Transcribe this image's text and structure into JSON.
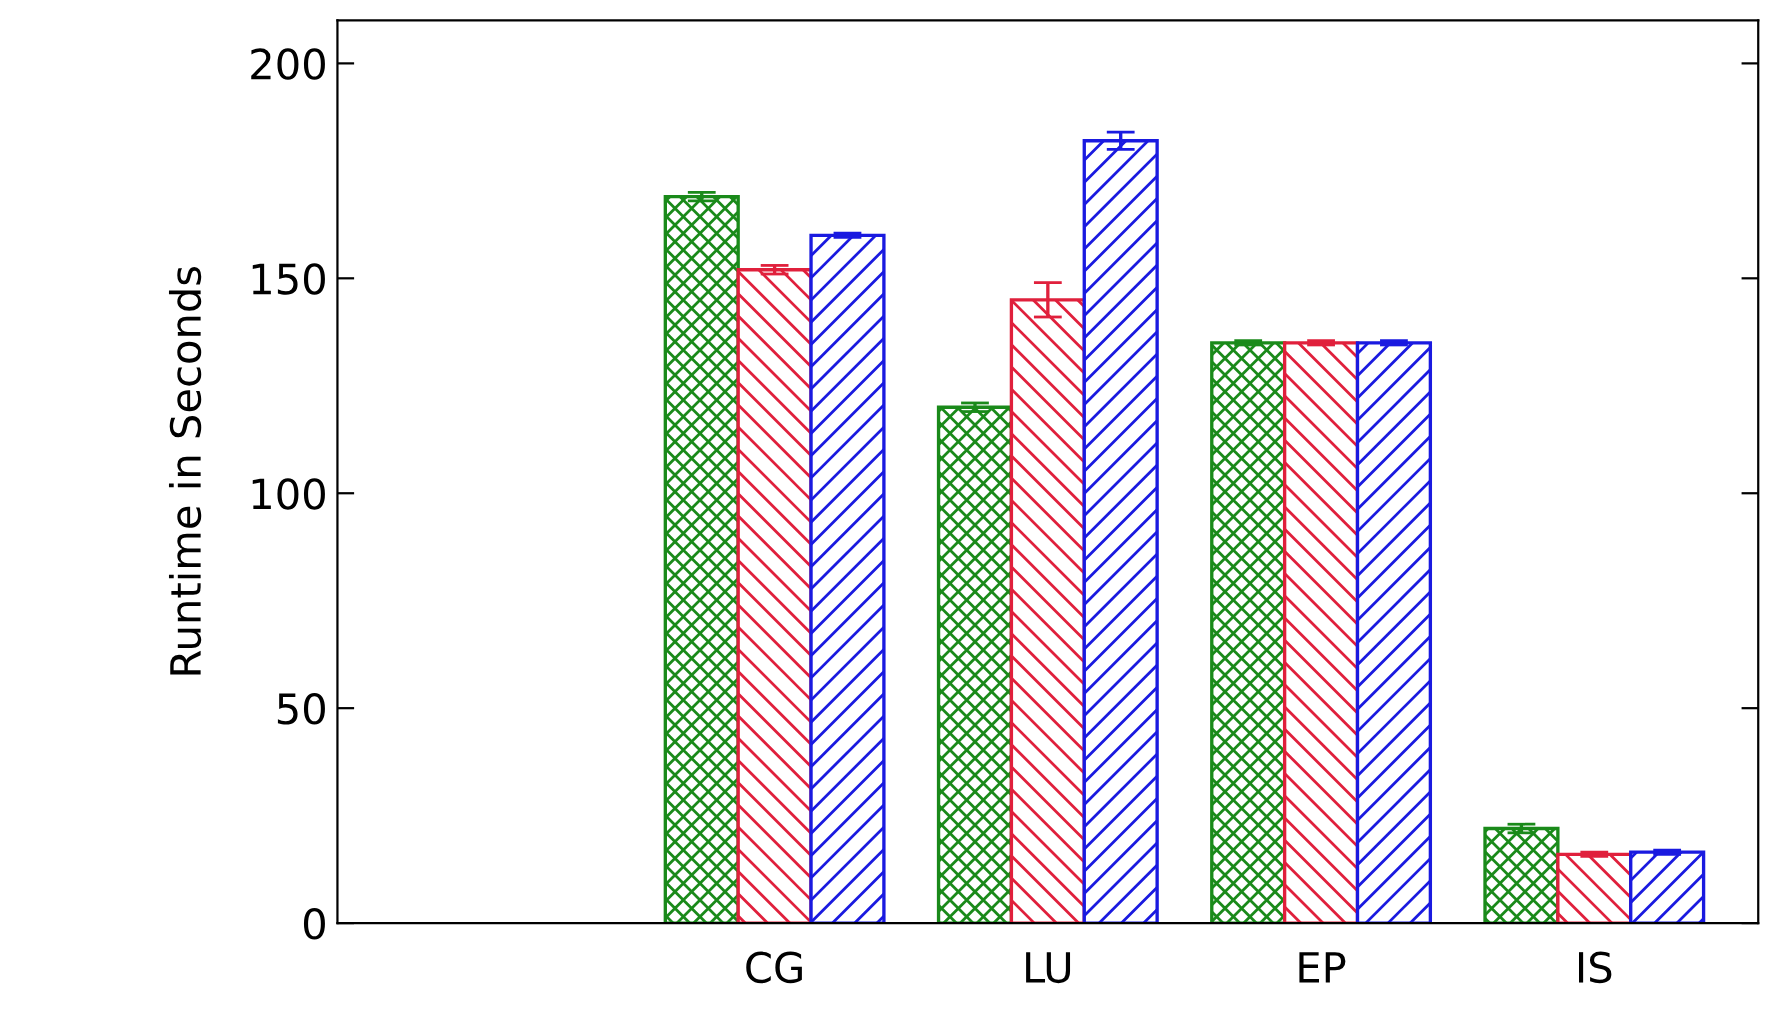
{
  "chart_data": {
    "type": "bar",
    "ylabel": "Runtime in Seconds",
    "categories": [
      "CG",
      "LU",
      "EP",
      "IS"
    ],
    "series": [
      {
        "color": "#1a8a1a",
        "values": [
          169,
          120,
          135,
          22
        ],
        "errors": [
          1,
          1,
          0.5,
          1
        ]
      },
      {
        "color": "#e0203c",
        "values": [
          152,
          145,
          135,
          16
        ],
        "errors": [
          1,
          4,
          0.5,
          0.5
        ]
      },
      {
        "color": "#1a1ae0",
        "values": [
          160,
          182,
          135,
          16.5
        ],
        "errors": [
          0.5,
          2,
          0.5,
          0.5
        ]
      }
    ],
    "ylim": [
      0,
      210
    ],
    "yticks": [
      0,
      50,
      100,
      150,
      200
    ],
    "grid": false
  }
}
